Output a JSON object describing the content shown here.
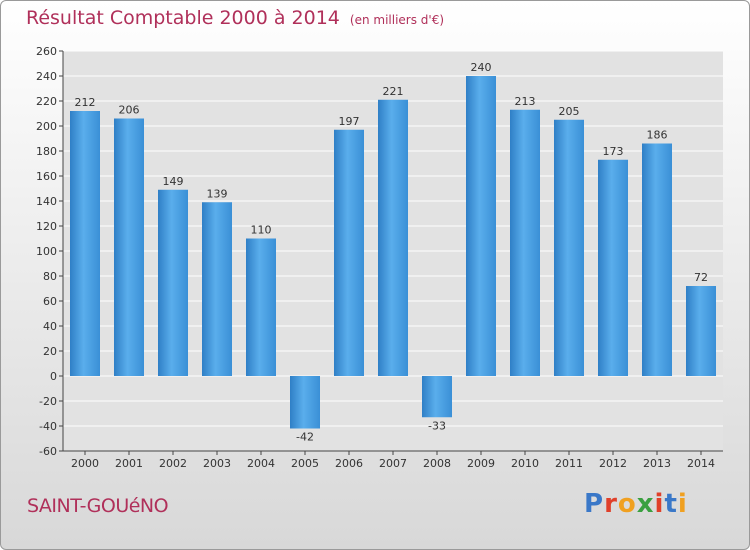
{
  "chart_data": {
    "type": "bar",
    "title": "Résultat Comptable 2000 à 2014",
    "subtitle": "(en milliers d'€)",
    "categories": [
      "2000",
      "2001",
      "2002",
      "2003",
      "2004",
      "2005",
      "2006",
      "2007",
      "2008",
      "2009",
      "2010",
      "2011",
      "2012",
      "2013",
      "2014"
    ],
    "values": [
      212,
      206,
      149,
      139,
      110,
      -42,
      197,
      221,
      -33,
      240,
      213,
      205,
      173,
      186,
      72
    ],
    "ylim": [
      -60,
      260
    ],
    "yticks": [
      -60,
      -40,
      -20,
      0,
      20,
      40,
      60,
      80,
      100,
      120,
      140,
      160,
      180,
      200,
      220,
      240,
      260
    ],
    "xlabel": "",
    "ylabel": "",
    "grid": true,
    "bar_color": "#4a9ee0"
  },
  "footer": {
    "commune": "SAINT-GOUéNO",
    "logo_letters": [
      "P",
      "r",
      "o",
      "x",
      "i",
      "t",
      "i"
    ],
    "logo_colors": [
      "#3a78c8",
      "#e0402a",
      "#f0a020",
      "#3aa040",
      "#e0402a",
      "#3a78c8",
      "#f0a020"
    ]
  }
}
